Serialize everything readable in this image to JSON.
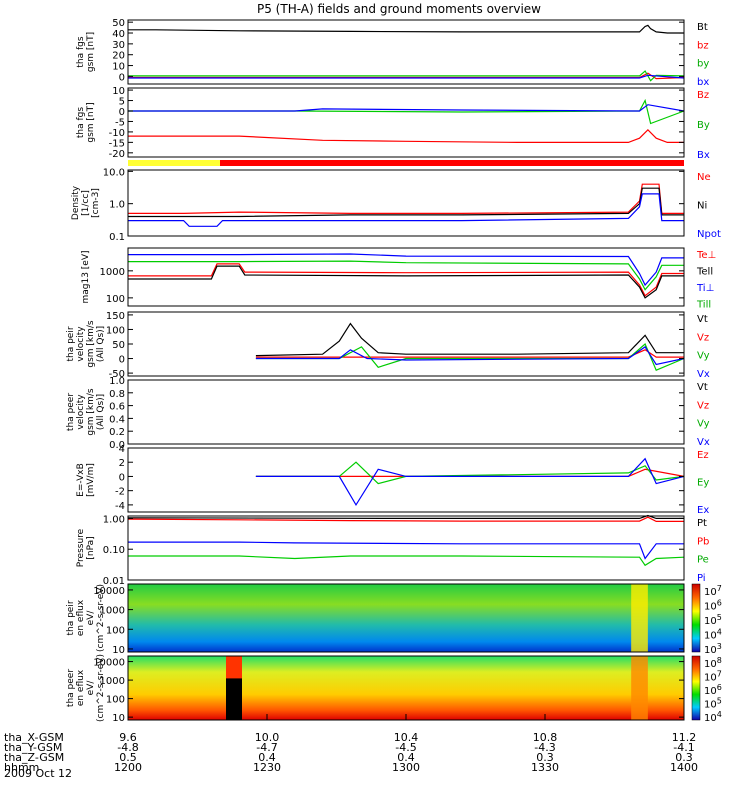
{
  "title": "P5 (TH-A) fields and ground moments overview",
  "date_label": "2009 Oct 12",
  "chart_data": {
    "type": "line",
    "title": "P5 (TH-A) fields and ground moments overview",
    "x_range": [
      "12:00",
      "14:00"
    ],
    "panels": [
      {
        "id": "fgs_gsm",
        "ylabel": "tha fgs gsm [nT]",
        "ylim": [
          -7,
          52
        ],
        "yscale": "linear",
        "ticks": [
          0,
          10,
          20,
          30,
          40,
          50
        ],
        "tick_labels": [
          "0",
          "10",
          "20",
          "30",
          "40",
          "50"
        ],
        "series": [
          {
            "name": "Bt",
            "color": "#000000",
            "x": [
              0,
              0.05,
              0.2,
              0.4,
              0.6,
              0.8,
              0.92,
              0.93,
              0.935,
              0.94,
              0.95,
              0.97,
              1
            ],
            "y": [
              43,
              43,
              42,
              41.5,
              41,
              41,
              41,
              46,
              47,
              44,
              41,
              40,
              40
            ]
          },
          {
            "name": "bz",
            "color": "#ff0000",
            "x": [
              0,
              0.5,
              0.92,
              0.935,
              0.95,
              1
            ],
            "y": [
              -1,
              -1,
              -1,
              3,
              -2,
              -1
            ]
          },
          {
            "name": "by",
            "color": "#00cc00",
            "x": [
              0,
              0.5,
              0.92,
              0.93,
              0.94,
              0.95,
              1
            ],
            "y": [
              0.5,
              0.5,
              0.5,
              5,
              -4,
              1,
              0.5
            ]
          },
          {
            "name": "bx",
            "color": "#0000ff",
            "x": [
              0,
              0.5,
              0.92,
              0.935,
              1
            ],
            "y": [
              -1.5,
              -1.5,
              -1.5,
              1,
              -1.5
            ]
          }
        ]
      },
      {
        "id": "fgs_gse",
        "ylabel": "tha fgs gsm [nT]",
        "ylim": [
          -22,
          11
        ],
        "yscale": "linear",
        "ticks": [
          -20,
          -15,
          -10,
          -5,
          0,
          5,
          10
        ],
        "tick_labels": [
          "-20",
          "-15",
          "-10",
          "-5",
          "0",
          "5",
          "10"
        ],
        "series": [
          {
            "name": "Bz",
            "color": "#ff0000",
            "x": [
              0,
              0.2,
              0.35,
              0.5,
              0.7,
              0.9,
              0.92,
              0.935,
              0.95,
              0.97,
              1
            ],
            "y": [
              -12,
              -12,
              -14,
              -14.5,
              -15,
              -15,
              -13,
              -9,
              -13,
              -15,
              -15
            ]
          },
          {
            "name": "By",
            "color": "#00cc00",
            "x": [
              0,
              0.3,
              0.6,
              0.92,
              0.93,
              0.94,
              1
            ],
            "y": [
              0,
              0,
              -0.5,
              0,
              5,
              -6,
              0
            ]
          },
          {
            "name": "Bx",
            "color": "#0000ff",
            "x": [
              0,
              0.3,
              0.35,
              0.6,
              0.92,
              0.935,
              1
            ],
            "y": [
              0,
              0,
              1,
              0.5,
              0,
              3,
              0
            ]
          }
        ]
      },
      {
        "id": "density",
        "ylabel": "Density [1/cc] [cm-3]",
        "ylim": [
          0.1,
          11
        ],
        "yscale": "log",
        "ticks": [
          0.1,
          1.0,
          10.0
        ],
        "tick_labels": [
          "0.1",
          "1.0",
          "10.0"
        ],
        "series": [
          {
            "name": "Ne",
            "color": "#ff0000",
            "x": [
              0,
              0.1,
              0.2,
              0.4,
              0.6,
              0.9,
              0.92,
              0.925,
              0.955,
              0.96,
              1
            ],
            "y": [
              0.5,
              0.5,
              0.55,
              0.5,
              0.5,
              0.55,
              1.2,
              4,
              4,
              0.5,
              0.5
            ]
          },
          {
            "name": "Ni",
            "color": "#000000",
            "x": [
              0,
              0.1,
              0.2,
              0.4,
              0.6,
              0.9,
              0.92,
              0.925,
              0.955,
              0.96,
              1
            ],
            "y": [
              0.4,
              0.4,
              0.4,
              0.45,
              0.45,
              0.5,
              1.0,
              3,
              3,
              0.45,
              0.45
            ]
          },
          {
            "name": "Npot",
            "color": "#0000ff",
            "x": [
              0,
              0.1,
              0.11,
              0.16,
              0.17,
              0.4,
              0.6,
              0.9,
              0.92,
              0.925,
              0.955,
              0.96,
              1
            ],
            "y": [
              0.3,
              0.3,
              0.2,
              0.2,
              0.3,
              0.3,
              0.3,
              0.35,
              0.8,
              2,
              2,
              0.3,
              0.3
            ]
          }
        ]
      },
      {
        "id": "temperature",
        "ylabel": "mag13 [eV]",
        "ylim": [
          50,
          7000
        ],
        "yscale": "log",
        "ticks": [
          100,
          1000
        ],
        "tick_labels": [
          "100",
          "1000"
        ],
        "series": [
          {
            "name": "Te⊥",
            "color": "#ff0000",
            "x": [
              0,
              0.15,
              0.16,
              0.2,
              0.21,
              0.5,
              0.9,
              0.92,
              0.93,
              0.95,
              0.96,
              1
            ],
            "y": [
              650,
              650,
              1800,
              1800,
              900,
              850,
              900,
              300,
              120,
              250,
              800,
              800
            ]
          },
          {
            "name": "Tell",
            "color": "#000000",
            "x": [
              0,
              0.15,
              0.16,
              0.2,
              0.21,
              0.5,
              0.9,
              0.92,
              0.93,
              0.95,
              0.96,
              1
            ],
            "y": [
              500,
              500,
              1500,
              1500,
              700,
              650,
              700,
              250,
              100,
              200,
              650,
              650
            ]
          },
          {
            "name": "Ti⊥",
            "color": "#0000ff",
            "x": [
              0,
              0.2,
              0.4,
              0.5,
              0.9,
              0.92,
              0.93,
              0.95,
              0.96,
              1
            ],
            "y": [
              4000,
              4000,
              4200,
              3500,
              3400,
              800,
              300,
              900,
              3000,
              3000
            ]
          },
          {
            "name": "Till",
            "color": "#00cc00",
            "x": [
              0,
              0.2,
              0.4,
              0.5,
              0.9,
              0.92,
              0.93,
              0.95,
              0.96,
              1
            ],
            "y": [
              2200,
              2200,
              2300,
              2000,
              1800,
              500,
              200,
              600,
              1600,
              1600
            ]
          }
        ]
      },
      {
        "id": "velocity_peir",
        "ylabel": "tha peir velocity gsm [km/s (All Qs)]",
        "ylim": [
          -60,
          160
        ],
        "yscale": "linear",
        "ticks": [
          -50,
          0,
          50,
          100,
          150
        ],
        "tick_labels": [
          "-50",
          "0",
          "50",
          "100",
          "150"
        ],
        "series": [
          {
            "name": "Vt",
            "color": "#000000",
            "x": [
              0.23,
              0.35,
              0.38,
              0.4,
              0.42,
              0.45,
              0.5,
              0.7,
              0.9,
              0.93,
              0.95,
              1
            ],
            "y": [
              10,
              15,
              60,
              120,
              70,
              20,
              15,
              15,
              20,
              80,
              20,
              20
            ]
          },
          {
            "name": "Vz",
            "color": "#ff0000",
            "x": [
              0.23,
              0.5,
              0.9,
              0.93,
              0.95,
              1
            ],
            "y": [
              5,
              5,
              5,
              30,
              5,
              5
            ]
          },
          {
            "name": "Vy",
            "color": "#00cc00",
            "x": [
              0.23,
              0.38,
              0.42,
              0.45,
              0.5,
              0.9,
              0.93,
              0.95,
              1
            ],
            "y": [
              0,
              0,
              40,
              -30,
              0,
              0,
              50,
              -40,
              0
            ]
          },
          {
            "name": "Vx",
            "color": "#0000ff",
            "x": [
              0.23,
              0.38,
              0.4,
              0.43,
              0.5,
              0.9,
              0.93,
              0.95,
              1
            ],
            "y": [
              0,
              0,
              30,
              0,
              -5,
              0,
              40,
              -20,
              0
            ]
          }
        ]
      },
      {
        "id": "velocity_peer",
        "ylabel": "tha peer velocity gsm [km/s (All Qs)]",
        "ylim": [
          0,
          1
        ],
        "yscale": "linear",
        "ticks": [
          0,
          0.2,
          0.4,
          0.6,
          0.8,
          1.0
        ],
        "tick_labels": [
          "0.0",
          "0.2",
          "0.4",
          "0.6",
          "0.8",
          "1.0"
        ],
        "series": [
          {
            "name": "Vt",
            "color": "#000000",
            "x": [],
            "y": []
          },
          {
            "name": "Vz",
            "color": "#ff0000",
            "x": [],
            "y": []
          },
          {
            "name": "Vy",
            "color": "#00cc00",
            "x": [],
            "y": []
          },
          {
            "name": "Vx",
            "color": "#0000ff",
            "x": [],
            "y": []
          }
        ]
      },
      {
        "id": "efield",
        "ylabel": "E=-VxB [mV/m]",
        "ylim": [
          -5,
          4
        ],
        "yscale": "linear",
        "ticks": [
          -4,
          -2,
          0,
          2,
          4
        ],
        "tick_labels": [
          "-4",
          "-2",
          "0",
          "2",
          "4"
        ],
        "series": [
          {
            "name": "Ez",
            "color": "#ff0000",
            "x": [
              0.23,
              0.5,
              0.9,
              0.93,
              1
            ],
            "y": [
              0,
              0,
              0,
              1,
              0
            ]
          },
          {
            "name": "Ey",
            "color": "#00cc00",
            "x": [
              0.23,
              0.38,
              0.41,
              0.45,
              0.5,
              0.9,
              0.93,
              0.95,
              1
            ],
            "y": [
              0,
              0,
              2,
              -1,
              0,
              0.5,
              1.5,
              -0.5,
              0
            ]
          },
          {
            "name": "Ex",
            "color": "#0000ff",
            "x": [
              0.23,
              0.38,
              0.41,
              0.45,
              0.5,
              0.9,
              0.93,
              0.95,
              1
            ],
            "y": [
              0,
              0,
              -4,
              1,
              0,
              0,
              2.5,
              -1,
              0
            ]
          }
        ]
      },
      {
        "id": "pressure",
        "ylabel": "Pressure [nPa]",
        "ylim": [
          0.01,
          1.2
        ],
        "yscale": "log",
        "ticks": [
          0.01,
          0.1,
          1.0
        ],
        "tick_labels": [
          "0.01",
          "0.10",
          "1.00"
        ],
        "series": [
          {
            "name": "Pt",
            "color": "#000000",
            "x": [
              0,
              0.5,
              0.92,
              0.935,
              0.95,
              1
            ],
            "y": [
              1.05,
              1.0,
              1.0,
              1.25,
              1.0,
              1.0
            ]
          },
          {
            "name": "Pb",
            "color": "#ff0000",
            "x": [
              0,
              0.2,
              0.4,
              0.6,
              0.92,
              0.935,
              0.95,
              1
            ],
            "y": [
              0.95,
              0.9,
              0.85,
              0.82,
              0.82,
              1.1,
              0.8,
              0.8
            ]
          },
          {
            "name": "Pe",
            "color": "#00cc00",
            "x": [
              0,
              0.2,
              0.3,
              0.4,
              0.6,
              0.92,
              0.93,
              0.95,
              1
            ],
            "y": [
              0.06,
              0.06,
              0.05,
              0.06,
              0.06,
              0.055,
              0.03,
              0.05,
              0.055
            ]
          },
          {
            "name": "Pi",
            "color": "#0000ff",
            "x": [
              0,
              0.2,
              0.3,
              0.6,
              0.92,
              0.93,
              0.95,
              1
            ],
            "y": [
              0.17,
              0.17,
              0.16,
              0.15,
              0.15,
              0.05,
              0.15,
              0.15
            ]
          }
        ]
      },
      {
        "id": "peir_eflux",
        "type": "heatmap",
        "ylabel": "tha peir en eflux eV/ (cm^2-s-sr-eV)",
        "ylim": [
          7,
          20000
        ],
        "yscale": "log",
        "ticks": [
          10,
          100,
          1000,
          10000
        ],
        "tick_labels": [
          "10",
          "100",
          "1000",
          "10000"
        ],
        "colorbar_labels": [
          "10^7",
          "10^6",
          "10^5",
          "10^4",
          "10^3"
        ]
      },
      {
        "id": "peer_eflux",
        "type": "heatmap",
        "ylabel": "tha peer en eflux eV/ (cm^2-s-sr-eV)",
        "ylim": [
          7,
          20000
        ],
        "yscale": "log",
        "ticks": [
          10,
          100,
          1000,
          10000
        ],
        "tick_labels": [
          "10",
          "100",
          "1000",
          "10000"
        ],
        "colorbar_labels": [
          "10^8",
          "10^7",
          "10^6",
          "10^5",
          "10^4"
        ]
      }
    ],
    "x_axis_table": {
      "rows": [
        {
          "label": "tha_X-GSM",
          "values": [
            "9.6",
            "10.0",
            "10.4",
            "10.8",
            "11.2"
          ]
        },
        {
          "label": "tha_Y-GSM",
          "values": [
            "-4.8",
            "-4.7",
            "-4.5",
            "-4.3",
            "-4.1"
          ]
        },
        {
          "label": "tha_Z-GSM",
          "values": [
            "0.5",
            "0.4",
            "0.4",
            "0.3",
            "0.3"
          ]
        },
        {
          "label": "hhmm",
          "values": [
            "1200",
            "1230",
            "1300",
            "1330",
            "1400"
          ]
        }
      ]
    }
  }
}
